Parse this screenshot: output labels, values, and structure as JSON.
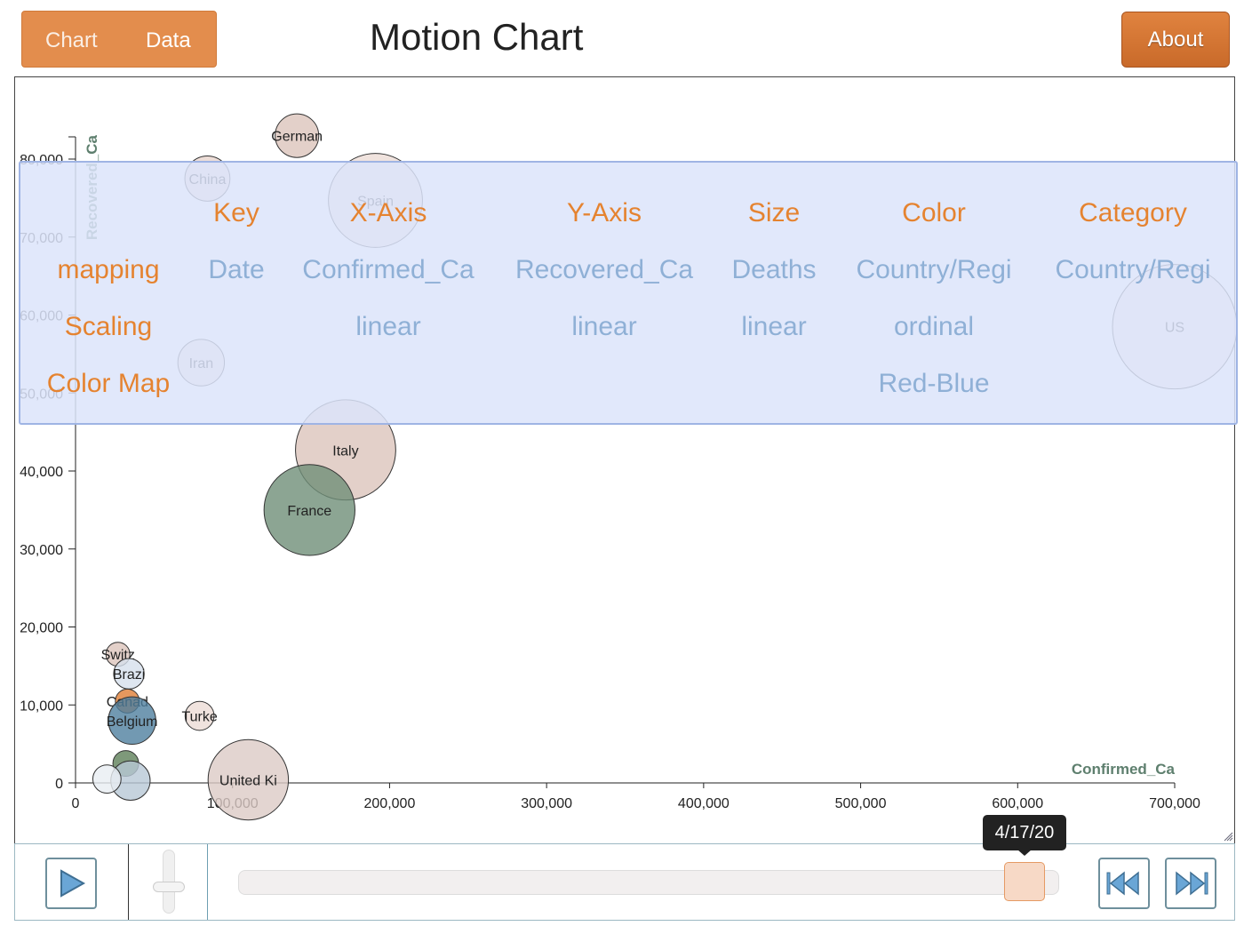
{
  "header": {
    "tabs": [
      "Chart",
      "Data"
    ],
    "title": "Motion Chart",
    "about_label": "About"
  },
  "mapping_panel": {
    "columns": [
      "Key",
      "X-Axis",
      "Y-Axis",
      "Size",
      "Color",
      "Category"
    ],
    "rows": {
      "mapping": {
        "label": "mapping",
        "values": [
          "Date",
          "Confirmed_Ca",
          "Recovered_Ca",
          "Deaths",
          "Country/Regi",
          "Country/Regi"
        ]
      },
      "scaling": {
        "label": "Scaling",
        "values": [
          "",
          "linear",
          "linear",
          "linear",
          "ordinal",
          ""
        ]
      },
      "colormap": {
        "label": "Color Map",
        "values": [
          "",
          "",
          "",
          "",
          "Red-Blue",
          ""
        ]
      }
    }
  },
  "controls": {
    "current_date": "4/17/20",
    "time_position": 0.96,
    "play_icon": "play-triangle-icon",
    "skip_back_icon": "skip-to-start-icon",
    "skip_forward_icon": "skip-to-end-icon"
  },
  "colors": {
    "accent": "#e38d4d",
    "axis_label": "#5e7f6e",
    "overlay_header": "#e58330",
    "overlay_value": "#8fb0d6"
  },
  "chart_data": {
    "type": "scatter",
    "subtype": "bubble",
    "xlabel": "Confirmed_Ca",
    "ylabel": "Recovered_Ca",
    "xlim": [
      0,
      700000
    ],
    "ylim": [
      0,
      80000
    ],
    "x_ticks": [
      "0",
      "100,000",
      "200,000",
      "300,000",
      "400,000",
      "500,000",
      "600,000",
      "700,000"
    ],
    "y_ticks": [
      "0",
      "10,000",
      "20,000",
      "30,000",
      "40,000",
      "50,000",
      "60,000",
      "70,000",
      "80,000"
    ],
    "points": [
      {
        "label": "German",
        "x": 141000,
        "y": 83000,
        "size": 4300,
        "color": "#dcc4bb"
      },
      {
        "label": "China",
        "x": 84000,
        "y": 77500,
        "size": 4600,
        "color": "#e8d4cd"
      },
      {
        "label": "Spain",
        "x": 191000,
        "y": 74700,
        "size": 20000,
        "color": "#ecdcd6"
      },
      {
        "label": "US",
        "x": 700000,
        "y": 58500,
        "size": 35000,
        "color": "#f0e4e0"
      },
      {
        "label": "Iran",
        "x": 80000,
        "y": 53900,
        "size": 4900,
        "color": "#ecdcd6"
      },
      {
        "label": "Italy",
        "x": 172000,
        "y": 42700,
        "size": 22700,
        "color": "#dcc4bb"
      },
      {
        "label": "France",
        "x": 149000,
        "y": 35000,
        "size": 18700,
        "color": "#6f8f78"
      },
      {
        "label": "Switz",
        "x": 27000,
        "y": 16500,
        "size": 1300,
        "color": "#dcc4bb"
      },
      {
        "label": "Brazi",
        "x": 34000,
        "y": 14000,
        "size": 2100,
        "color": "#d6e0ec"
      },
      {
        "label": "Canad",
        "x": 33000,
        "y": 10500,
        "size": 1300,
        "color": "#e07e36"
      },
      {
        "label": "Belgium",
        "x": 36000,
        "y": 8000,
        "size": 5100,
        "color": "#4f7f9f"
      },
      {
        "label": "Turke",
        "x": 79000,
        "y": 8600,
        "size": 1900,
        "color": "#ecdcd6"
      },
      {
        "label": "",
        "x": 32000,
        "y": 2500,
        "size": 1500,
        "color": "#5e7f59"
      },
      {
        "label": "",
        "x": 35000,
        "y": 300,
        "size": 3500,
        "color": "#b8c8d6"
      },
      {
        "label": "",
        "x": 20000,
        "y": 500,
        "size": 1800,
        "color": "#e8eef2"
      },
      {
        "label": "United Ki",
        "x": 110000,
        "y": 400,
        "size": 14600,
        "color": "#dccac6"
      }
    ]
  }
}
